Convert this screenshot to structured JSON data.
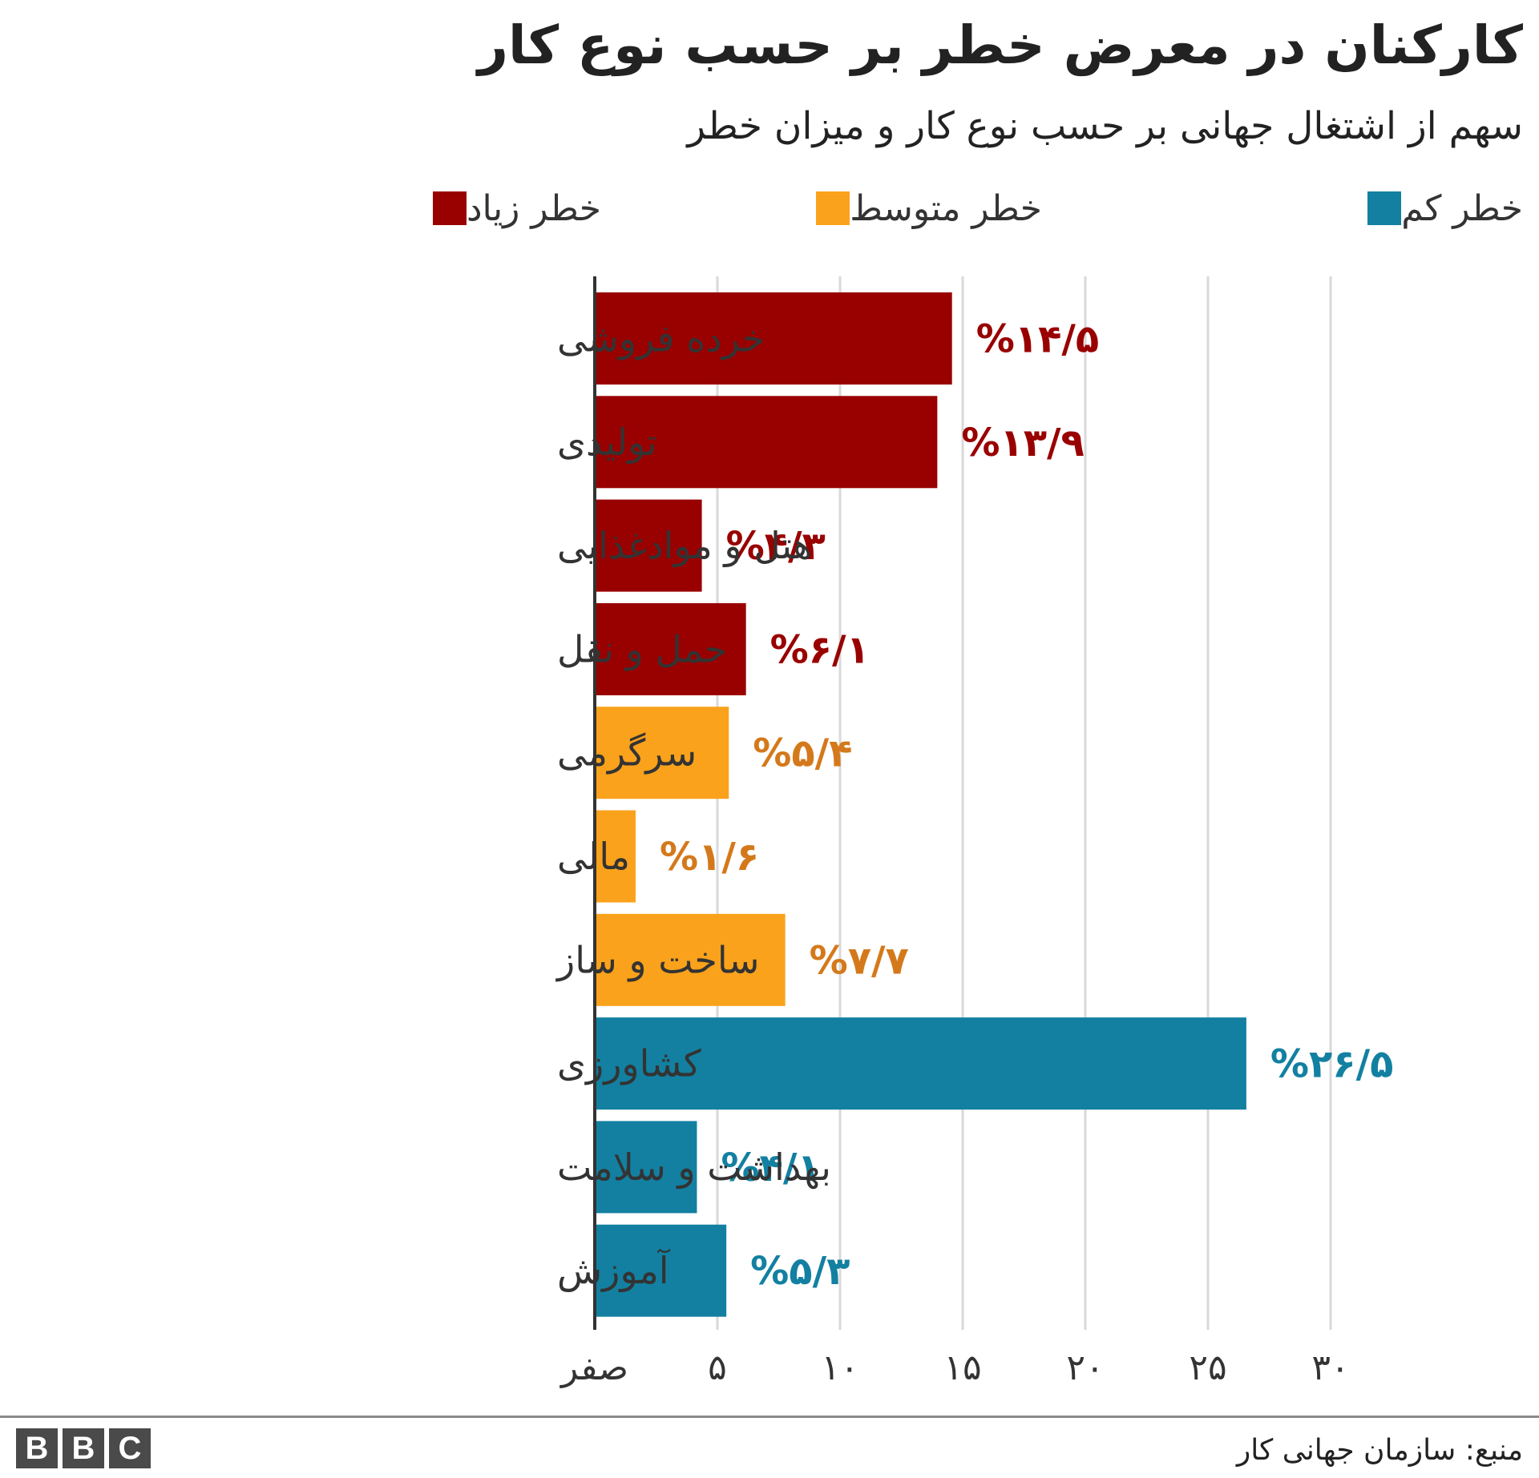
{
  "chart_data": {
    "type": "bar",
    "orientation": "horizontal",
    "title": "کارکنان در معرض خطر بر حسب نوع کار",
    "subtitle": "سهم از اشتغال جهانی بر حسب نوع کار و میزان خطر",
    "legend": [
      {
        "name": "خطر زیاد",
        "color": "#990000"
      },
      {
        "name": "خطر متوسط",
        "color": "#FAA21B"
      },
      {
        "name": "خطر کم",
        "color": "#1380A1"
      }
    ],
    "legend_placement": "top",
    "categories": [
      "خرده فروشی",
      "تولیدی",
      "هتل و موادغذایی",
      "حمل و نقل",
      "سرگرمی",
      "مالی",
      "ساخت و ساز",
      "کشاورزی",
      "بهداشت و سلامت",
      "آموزش"
    ],
    "values": [
      14.5,
      13.9,
      4.3,
      6.1,
      5.4,
      1.6,
      7.7,
      26.5,
      4.1,
      5.3
    ],
    "value_labels": [
      "%۱۴/۵",
      "%۱۳/۹",
      "%۴/۳",
      "%۶/۱",
      "%۵/۴",
      "%۱/۶",
      "%۷/۷",
      "%۲۶/۵",
      "%۴/۱",
      "%۵/۳"
    ],
    "risk": [
      "خطر زیاد",
      "خطر زیاد",
      "خطر زیاد",
      "خطر زیاد",
      "خطر متوسط",
      "خطر متوسط",
      "خطر متوسط",
      "خطر کم",
      "خطر کم",
      "خطر کم"
    ],
    "colors": {
      "high_bar": "#990000",
      "medium_bar": "#FAA21B",
      "low_bar": "#1380A1",
      "high_label": "#990000",
      "medium_label": "#D4791B",
      "low_label": "#1380A1"
    },
    "xlim": [
      0,
      30
    ],
    "x_ticks": [
      0,
      5,
      10,
      15,
      20,
      25,
      30
    ],
    "x_tick_labels": [
      "صفر",
      "۵",
      "۱۰",
      "۱۵",
      "۲۰",
      "۲۵",
      "۳۰"
    ],
    "grid": true,
    "xlabel": "",
    "ylabel": ""
  },
  "footer": {
    "logo_text": "BBC",
    "source": "منبع: سازمان جهانی کار"
  }
}
